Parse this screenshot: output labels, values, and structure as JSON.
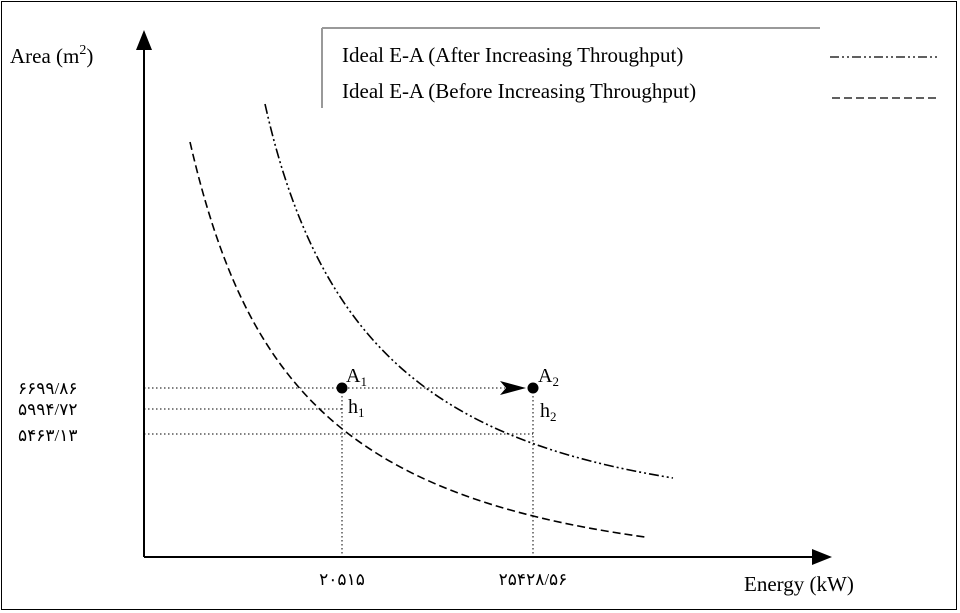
{
  "chart_data": {
    "type": "line",
    "xlabel": "Energy (kW)",
    "ylabel_prefix": "Area (m",
    "ylabel_sup": "2",
    "ylabel_suffix": ")",
    "legend": [
      {
        "name": "Ideal E-A (After Increasing Throughput)",
        "style": "dash-dot-dot",
        "color": "#000000"
      },
      {
        "name": "Ideal E-A (Before Increasing Throughput)",
        "style": "dashed",
        "color": "#000000"
      }
    ],
    "legend_placement": "top-right",
    "x_ticks": [
      {
        "value": 20515,
        "label": "۲۰۵۱۵"
      },
      {
        "value": 25428.56,
        "label": "۲۵۴۲۸/۵۶"
      }
    ],
    "y_ticks": [
      {
        "value": 6699.86,
        "label": "۶۶۹۹/۸۶"
      },
      {
        "value": 5994.72,
        "label": "۵۹۹۴/۷۲"
      },
      {
        "value": 5463.13,
        "label": "۵۴۶۳/۱۳"
      }
    ],
    "points": [
      {
        "id": "A1",
        "label": "A",
        "sub": "1",
        "x": 20515,
        "y": 6699.86
      },
      {
        "id": "A2",
        "label": "A",
        "sub": "2",
        "x": 25428.56,
        "y": 6699.86
      }
    ],
    "annotations": [
      {
        "id": "h1",
        "label": "h",
        "sub": "1"
      },
      {
        "id": "h2",
        "label": "h",
        "sub": "2"
      }
    ],
    "grid": false
  }
}
